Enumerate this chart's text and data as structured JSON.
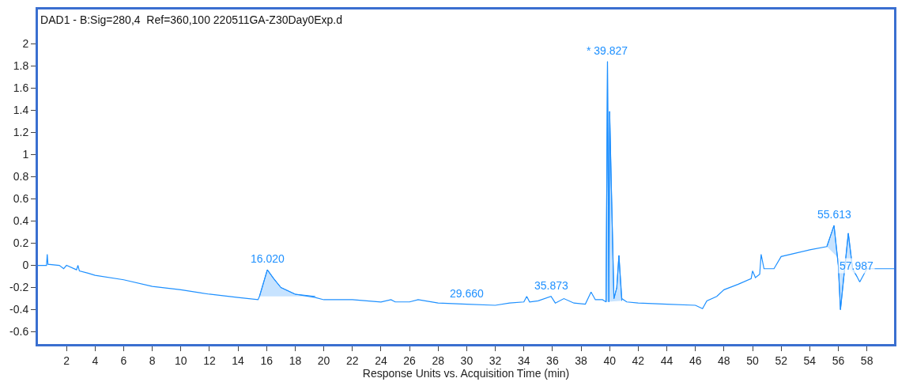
{
  "chart_data": {
    "type": "line",
    "title": "DAD1 - B:Sig=280,4  Ref=360,100 220511GA-Z30Day0Exp.d",
    "xlabel": "Response Units vs. Acquisition Time (min)",
    "xlim": [
      0,
      59.9
    ],
    "xticks": [
      2,
      4,
      6,
      8,
      10,
      12,
      14,
      16,
      18,
      20,
      22,
      24,
      26,
      28,
      30,
      32,
      34,
      36,
      38,
      40,
      42,
      44,
      46,
      48,
      50,
      52,
      54,
      56,
      58
    ],
    "ylim": [
      -0.71,
      2.31
    ],
    "yticks": [
      -0.6,
      -0.4,
      -0.2,
      0,
      0.2,
      0.4,
      0.6,
      0.8,
      1,
      1.2,
      1.4,
      1.6,
      1.8,
      2
    ],
    "line_style": "solid",
    "marker": "none",
    "series": [
      {
        "color": "#1e90ff",
        "x": [
          0,
          0.6,
          0.65,
          0.7,
          1.5,
          1.8,
          2.0,
          2.7,
          2.8,
          2.9,
          3.5,
          4,
          6,
          8,
          10,
          12,
          14,
          15.4,
          15.5,
          16.05,
          16.5,
          17,
          18,
          19.4,
          20,
          22,
          24,
          24.7,
          25,
          26,
          26.6,
          28,
          30,
          32,
          33,
          34,
          34.2,
          34.4,
          35,
          35.9,
          36.2,
          36.8,
          37.5,
          38.3,
          38.7,
          39.0,
          39.5,
          39.75,
          39.85,
          39.95,
          40.0,
          40.3,
          40.5,
          40.65,
          40.85,
          41.2,
          42,
          44,
          46,
          46.5,
          46.8,
          47.5,
          48,
          49,
          49.9,
          50.0,
          50.2,
          50.5,
          50.6,
          50.8,
          51.5,
          52,
          53,
          54,
          55.2,
          55.7,
          56.0,
          56.15,
          56.7,
          57.0,
          57.3,
          57.5,
          58,
          59.9
        ],
        "values": [
          0,
          0,
          0.1,
          0.01,
          0,
          -0.03,
          0,
          -0.04,
          0,
          -0.05,
          -0.07,
          -0.09,
          -0.13,
          -0.19,
          -0.22,
          -0.26,
          -0.29,
          -0.31,
          -0.28,
          -0.04,
          -0.12,
          -0.2,
          -0.26,
          -0.29,
          -0.31,
          -0.31,
          -0.33,
          -0.31,
          -0.33,
          -0.33,
          -0.31,
          -0.34,
          -0.35,
          -0.36,
          -0.34,
          -0.33,
          -0.28,
          -0.33,
          -0.32,
          -0.28,
          -0.34,
          -0.3,
          -0.34,
          -0.35,
          -0.24,
          -0.31,
          -0.31,
          -0.33,
          1.84,
          -0.33,
          1.39,
          -0.3,
          -0.2,
          0.09,
          -0.3,
          -0.33,
          -0.34,
          -0.35,
          -0.36,
          -0.39,
          -0.32,
          -0.28,
          -0.22,
          -0.17,
          -0.12,
          -0.05,
          -0.11,
          -0.08,
          0.1,
          -0.03,
          -0.03,
          0.08,
          0.11,
          0.14,
          0.17,
          0.36,
          0,
          -0.4,
          0.29,
          -0.03,
          -0.1,
          -0.15,
          -0.03,
          -0.03
        ]
      },
      {
        "type": "area",
        "color": "#1e90ff",
        "x": [
          15.5,
          16.05,
          16.5,
          17,
          18,
          19.4
        ],
        "values": [
          -0.28,
          -0.04,
          -0.12,
          -0.2,
          -0.26,
          -0.28
        ]
      },
      {
        "type": "area",
        "color": "#1e90ff",
        "x": [
          39.75,
          39.85,
          39.95,
          40.0,
          40.3,
          40.5,
          40.65,
          40.85
        ],
        "values": [
          -0.33,
          1.84,
          -0.33,
          1.39,
          -0.3,
          -0.2,
          0.09,
          -0.32
        ]
      },
      {
        "type": "area",
        "color": "#1e90ff",
        "x": [
          55.2,
          55.7,
          56.0,
          56.15,
          56.7,
          57.0,
          57.3
        ],
        "values": [
          0.17,
          0.36,
          0,
          -0.4,
          0.29,
          -0.03,
          -0.1
        ]
      }
    ],
    "annotations": [
      {
        "text": "16.020",
        "x": 16.05,
        "y": -0.04
      },
      {
        "text": "29.660",
        "x": 30,
        "y": -0.35
      },
      {
        "text": "35.873",
        "x": 35.9,
        "y": -0.28
      },
      {
        "text": "* 39.827",
        "x": 39.85,
        "y": 1.84
      },
      {
        "text": "55.613",
        "x": 55.7,
        "y": 0.36
      },
      {
        "text": "57.987",
        "x": 57.3,
        "y": -0.1
      }
    ]
  }
}
